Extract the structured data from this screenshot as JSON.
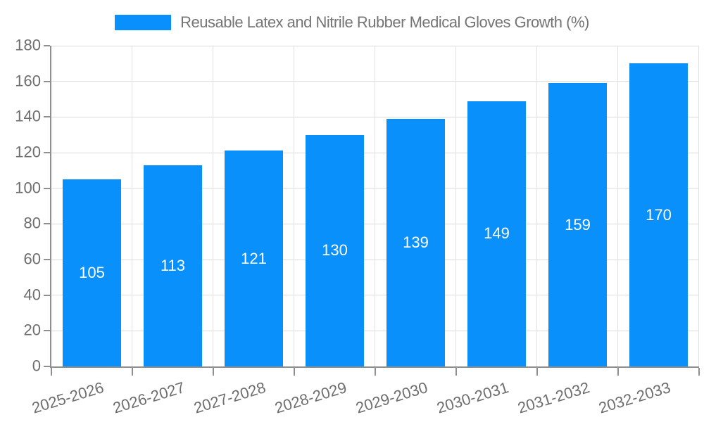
{
  "legend": {
    "label": "Reusable Latex and Nitrile Rubber Medical Gloves Growth (%)"
  },
  "chart_data": {
    "type": "bar",
    "title": "Reusable Latex and Nitrile Rubber Medical Gloves Growth (%)",
    "categories": [
      "2025-2026",
      "2026-2027",
      "2027-2028",
      "2028-2029",
      "2029-2030",
      "2030-2031",
      "2031-2032",
      "2032-2033"
    ],
    "values": [
      105,
      113,
      121,
      130,
      139,
      149,
      159,
      170
    ],
    "xlabel": "",
    "ylabel": "",
    "ylim": [
      0,
      180
    ],
    "yticks": [
      0,
      20,
      40,
      60,
      80,
      100,
      120,
      140,
      160,
      180
    ],
    "grid": true,
    "legend_position": "top",
    "value_labels": "inside-center",
    "xtick_rotation_deg": -17,
    "colors": {
      "bar": "#0a90fa",
      "axis_line": "#8f8f8f",
      "gridline": "#dcdcdc",
      "tick_label": "#6e6e6e",
      "legend_text": "#757575",
      "value_label": "#ffffff"
    }
  }
}
